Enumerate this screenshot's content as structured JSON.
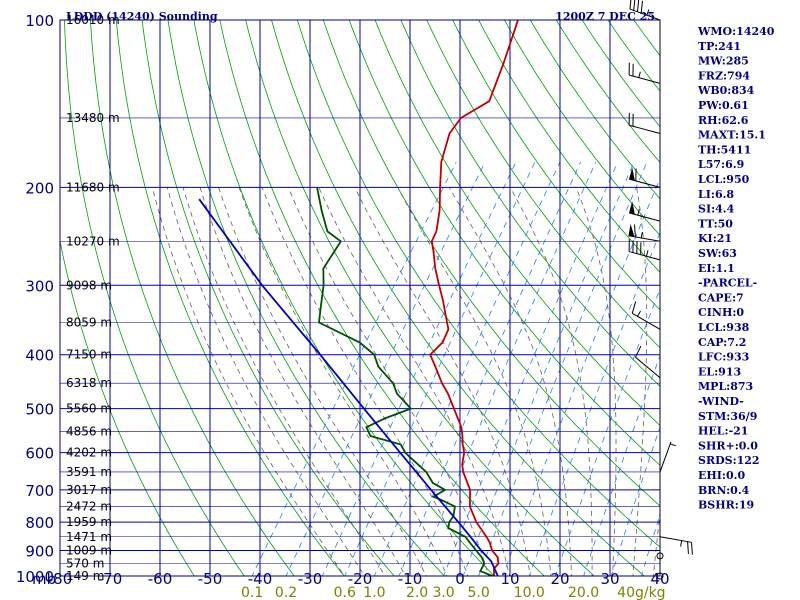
{
  "header": {
    "station": "LDDD (14240) Sounding",
    "time": "1200Z  7 DEC 25"
  },
  "colors": {
    "axis": "#000080",
    "grid": "#0000b0",
    "dry_adiabat": "#00a000",
    "moist_adiabat": "#606060",
    "mixing_ratio": "#2080ff",
    "temperature": "#c00000",
    "dewpoint": "#005000",
    "parcel": "#0000c0",
    "text": "#000080"
  },
  "chart_data": {
    "type": "line",
    "title": "LDDD (14240) Sounding",
    "xlabel": "",
    "ylabel": "mb",
    "pressure_levels": [
      100,
      200,
      300,
      400,
      500,
      600,
      700,
      800,
      900,
      1000
    ],
    "pressure_labels": [
      "100",
      "200",
      "300",
      "400",
      "500",
      "600",
      "700",
      "800",
      "900",
      "1000"
    ],
    "temperature_ticks": [
      -80,
      -70,
      -60,
      -50,
      -40,
      -30,
      -20,
      -10,
      0,
      10,
      20,
      30,
      40
    ],
    "temperature_tick_labels": [
      "-80",
      "-70",
      "-60",
      "-50",
      "-40",
      "-30",
      "-20",
      "-10",
      "0",
      "10",
      "20",
      "30",
      "40"
    ],
    "axis_unit_label": "mb",
    "xlim": [
      -80,
      40
    ],
    "ylim": [
      1000,
      100
    ],
    "height_labels": [
      {
        "p": 100,
        "text": "16010 m"
      },
      {
        "p": 150,
        "text": "13480 m"
      },
      {
        "p": 200,
        "text": "11680 m"
      },
      {
        "p": 250,
        "text": "10270 m"
      },
      {
        "p": 300,
        "text": "9098 m"
      },
      {
        "p": 350,
        "text": "8059 m"
      },
      {
        "p": 400,
        "text": "7150 m"
      },
      {
        "p": 450,
        "text": "6318 m"
      },
      {
        "p": 500,
        "text": "5560 m"
      },
      {
        "p": 550,
        "text": "4856 m"
      },
      {
        "p": 600,
        "text": "4202 m"
      },
      {
        "p": 650,
        "text": "3591 m"
      },
      {
        "p": 700,
        "text": "3017 m"
      },
      {
        "p": 750,
        "text": "2472 m"
      },
      {
        "p": 800,
        "text": "1959 m"
      },
      {
        "p": 850,
        "text": "1471 m"
      },
      {
        "p": 900,
        "text": "1009 m"
      },
      {
        "p": 950,
        "text": "570 m"
      },
      {
        "p": 1000,
        "text": "149 m"
      }
    ],
    "mixing_ratio_labels": [
      {
        "value": 0.1,
        "text": "0.1"
      },
      {
        "value": 0.2,
        "text": "0.2"
      },
      {
        "value": 0.6,
        "text": "0.6"
      },
      {
        "value": 1.0,
        "text": "1.0"
      },
      {
        "value": 2.0,
        "text": "2.0"
      },
      {
        "value": 3.0,
        "text": "3.0"
      },
      {
        "value": 5.0,
        "text": "5.0"
      },
      {
        "value": 10.0,
        "text": "10.0"
      },
      {
        "value": 20.0,
        "text": "20.0"
      },
      {
        "value": 40.0,
        "text": "40g/kg"
      }
    ],
    "series": [
      {
        "key": "temperature",
        "points": [
          [
            1008,
            8.4
          ],
          [
            1000,
            6.8
          ],
          [
            970,
            5.8
          ],
          [
            950,
            6.0
          ],
          [
            925,
            5.0
          ],
          [
            900,
            3.0
          ],
          [
            870,
            1.4
          ],
          [
            850,
            0.0
          ],
          [
            800,
            -4.0
          ],
          [
            750,
            -7.4
          ],
          [
            700,
            -9.6
          ],
          [
            650,
            -13.4
          ],
          [
            630,
            -14.6
          ],
          [
            600,
            -15.8
          ],
          [
            580,
            -17.2
          ],
          [
            560,
            -18.4
          ],
          [
            540,
            -19.8
          ],
          [
            500,
            -23.8
          ],
          [
            470,
            -27.0
          ],
          [
            450,
            -29.6
          ],
          [
            420,
            -33.2
          ],
          [
            400,
            -35.8
          ],
          [
            380,
            -35.0
          ],
          [
            360,
            -35.6
          ],
          [
            340,
            -38.0
          ],
          [
            320,
            -40.5
          ],
          [
            300,
            -43.4
          ],
          [
            280,
            -46.4
          ],
          [
            260,
            -49.2
          ],
          [
            250,
            -50.8
          ],
          [
            240,
            -51.2
          ],
          [
            220,
            -53.4
          ],
          [
            200,
            -56.4
          ],
          [
            180,
            -59.6
          ],
          [
            160,
            -61.8
          ],
          [
            150,
            -61.6
          ],
          [
            140,
            -58.2
          ],
          [
            120,
            -60.4
          ],
          [
            100,
            -63.4
          ]
        ]
      },
      {
        "key": "dewpoint",
        "points": [
          [
            1008,
            8.1
          ],
          [
            1000,
            6.5
          ],
          [
            980,
            3.4
          ],
          [
            950,
            3.2
          ],
          [
            925,
            1.8
          ],
          [
            900,
            -0.2
          ],
          [
            870,
            -2.6
          ],
          [
            850,
            -4.2
          ],
          [
            820,
            -8.8
          ],
          [
            800,
            -9.4
          ],
          [
            780,
            -9.4
          ],
          [
            750,
            -10.4
          ],
          [
            730,
            -14.0
          ],
          [
            720,
            -16.0
          ],
          [
            700,
            -14.6
          ],
          [
            680,
            -18.0
          ],
          [
            650,
            -20.8
          ],
          [
            600,
            -27.6
          ],
          [
            580,
            -29.6
          ],
          [
            560,
            -36.8
          ],
          [
            540,
            -38.8
          ],
          [
            520,
            -36.2
          ],
          [
            500,
            -32.4
          ],
          [
            470,
            -37.2
          ],
          [
            450,
            -39.4
          ],
          [
            420,
            -44.6
          ],
          [
            400,
            -47.0
          ],
          [
            380,
            -51.6
          ],
          [
            350,
            -62.4
          ],
          [
            330,
            -64.0
          ],
          [
            300,
            -66.5
          ],
          [
            280,
            -68.8
          ],
          [
            250,
            -69.0
          ],
          [
            240,
            -73.0
          ],
          [
            220,
            -77.0
          ],
          [
            200,
            -81.0
          ]
        ]
      },
      {
        "key": "parcel",
        "points": [
          [
            1008,
            8.0
          ],
          [
            940,
            4.2
          ],
          [
            900,
            0.8
          ],
          [
            850,
            -3.2
          ],
          [
            800,
            -7.6
          ],
          [
            700,
            -17.4
          ],
          [
            600,
            -28.6
          ],
          [
            500,
            -41.8
          ],
          [
            400,
            -57.8
          ],
          [
            300,
            -78.8
          ],
          [
            210,
            -103.0
          ]
        ]
      }
    ],
    "wind_barbs": [
      {
        "p": 100,
        "dir": 290,
        "speed": 45
      },
      {
        "p": 130,
        "dir": 285,
        "speed": 25
      },
      {
        "p": 160,
        "dir": 285,
        "speed": 20
      },
      {
        "p": 200,
        "dir": 285,
        "speed": 60
      },
      {
        "p": 230,
        "dir": 285,
        "speed": 55
      },
      {
        "p": 250,
        "dir": 280,
        "speed": 65
      },
      {
        "p": 270,
        "dir": 285,
        "speed": 45
      },
      {
        "p": 360,
        "dir": 300,
        "speed": 15
      },
      {
        "p": 440,
        "dir": 310,
        "speed": 10
      },
      {
        "p": 650,
        "dir": 20,
        "speed": 5
      },
      {
        "p": 850,
        "dir": 100,
        "speed": 25
      },
      {
        "p": 920,
        "dir": 0,
        "speed": 0
      },
      {
        "p": 1000,
        "dir": 0,
        "speed": 0
      }
    ]
  },
  "indices": [
    "WMO:14240",
    "TP:241",
    "MW:285",
    "FRZ:794",
    "WB0:834",
    "PW:0.61",
    "RH:62.6",
    "MAXT:15.1",
    "TH:5411",
    "L57:6.9",
    "LCL:950",
    "LI:6.8",
    "SI:4.4",
    "TT:50",
    "KI:21",
    "SW:63",
    "EI:1.1",
    "-PARCEL-",
    "CAPE:7",
    "CINH:0",
    "LCL:938",
    "CAP:7.2",
    "LFC:933",
    "EL:913",
    "MPL:873",
    "-WIND-",
    "STM:36/9",
    "HEL:-21",
    "SHR+:0.0",
    "SRDS:122",
    "EHI:0.0",
    "BRN:0.4",
    "BSHR:19"
  ]
}
